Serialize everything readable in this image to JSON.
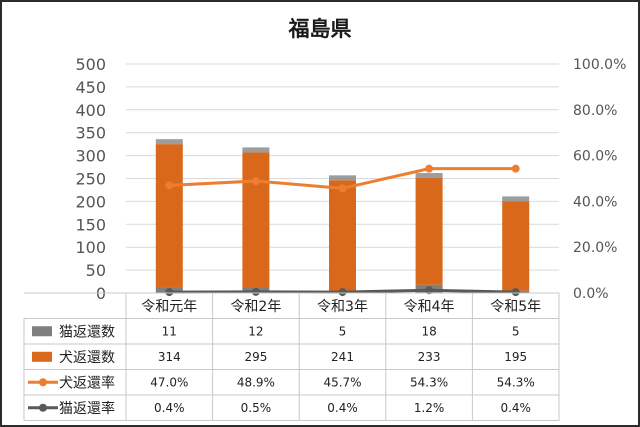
{
  "chart_data": {
    "type": "bar",
    "title": "福島県",
    "categories": [
      "令和元年",
      "令和2年",
      "令和3年",
      "令和4年",
      "令和5年"
    ],
    "series": [
      {
        "name": "猫返還数",
        "kind": "bar",
        "axis": "left",
        "values": [
          11,
          12,
          5,
          18,
          5
        ],
        "color": "#7f7f7f"
      },
      {
        "name": "犬返還数",
        "kind": "bar",
        "axis": "left",
        "values": [
          314,
          295,
          241,
          233,
          195
        ],
        "color": "#d9681a"
      },
      {
        "name": "犬返還率",
        "kind": "line",
        "axis": "right",
        "values": [
          47.0,
          48.9,
          45.7,
          54.3,
          54.3
        ],
        "color": "#ed7d31"
      },
      {
        "name": "猫返還率",
        "kind": "line",
        "axis": "right",
        "values": [
          0.4,
          0.5,
          0.4,
          1.2,
          0.4
        ],
        "color": "#595959"
      }
    ],
    "y_left": {
      "min": 0,
      "max": 500,
      "ticks": [
        "0",
        "50",
        "100",
        "150",
        "200",
        "250",
        "300",
        "350",
        "400",
        "450",
        "500"
      ]
    },
    "y_right": {
      "min": 0,
      "max": 100,
      "ticks": [
        "0.0%",
        "20.0%",
        "40.0%",
        "60.0%",
        "80.0%",
        "100.0%"
      ]
    },
    "grid": true,
    "legend": "data-table",
    "table": {
      "rows": [
        {
          "label": "猫返還数",
          "cells": [
            "11",
            "12",
            "5",
            "18",
            "5"
          ]
        },
        {
          "label": "犬返還数",
          "cells": [
            "314",
            "295",
            "241",
            "233",
            "195"
          ]
        },
        {
          "label": "犬返還率",
          "cells": [
            "47.0%",
            "48.9%",
            "45.7%",
            "54.3%",
            "54.3%"
          ]
        },
        {
          "label": "猫返還率",
          "cells": [
            "0.4%",
            "0.5%",
            "0.4%",
            "1.2%",
            "0.4%"
          ]
        }
      ]
    }
  }
}
